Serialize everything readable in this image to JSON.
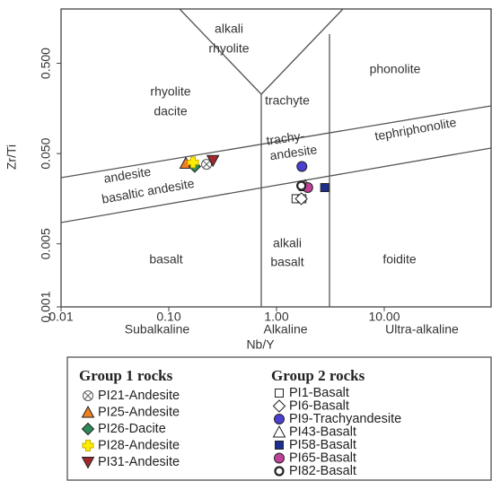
{
  "chart_data": {
    "type": "scatter",
    "x_label": "Nb/Y",
    "y_label": "Zr/Ti",
    "xlim": [
      0.01,
      100
    ],
    "ylim": [
      0.001,
      2
    ],
    "log_x": true,
    "log_y": true,
    "xticks": [
      0.01,
      {
        "value": 0.1,
        "label": "0.10"
      },
      {
        "value": 1,
        "label": "1.00"
      },
      {
        "value": 10,
        "label": "10.00"
      }
    ],
    "yticks": [
      {
        "value": 0.001,
        "label": "0.001"
      },
      {
        "value": 0.005,
        "label": "0.005"
      },
      {
        "value": 0.05,
        "label": "0.050"
      },
      {
        "value": 0.5,
        "label": "0.500"
      }
    ],
    "annotations": [
      "alkali",
      "rhyolite",
      "rhyolite",
      "dacite",
      "trachyte",
      "phonolite",
      "trachy-",
      "andesite",
      "tephriphonolite",
      "andesite",
      "basaltic andesite",
      "basalt",
      "alkali",
      "basalt",
      "foidite",
      "Subalkaline",
      "Alkaline",
      "Ultra-alkaline"
    ],
    "legend_titles": [
      "Group 1 rocks",
      "Group 2 rocks"
    ],
    "series": [
      {
        "name": "PI21-Andesite",
        "marker": "circle-x",
        "color": "#ffffff",
        "x": [
          0.224
        ],
        "values": [
          0.038
        ]
      },
      {
        "name": "PI25-Andesite",
        "marker": "triangle",
        "color": "#f07f20",
        "x": [
          0.144
        ],
        "values": [
          0.039
        ]
      },
      {
        "name": "PI26-Dacite",
        "marker": "diamond",
        "color": "#2e8b57",
        "x": [
          0.174
        ],
        "values": [
          0.036
        ]
      },
      {
        "name": "PI28-Andesite",
        "marker": "cross",
        "color": "#ffee00",
        "x": [
          0.168
        ],
        "values": [
          0.04
        ]
      },
      {
        "name": "PI31-Andesite",
        "marker": "triangle-down",
        "color": "#a0282c",
        "x": [
          0.257
        ],
        "values": [
          0.042
        ]
      },
      {
        "name": "PI1-Basalt",
        "marker": "square",
        "color": "#ffffff",
        "x": [
          1.52,
          1.72
        ],
        "values": [
          0.0158,
          0.0158
        ]
      },
      {
        "name": "PI6-Basalt",
        "marker": "diamond",
        "color": "#ffffff",
        "x": [
          1.7
        ],
        "values": [
          0.0158
        ]
      },
      {
        "name": "PI9-Trachyandesite",
        "marker": "circle",
        "color": "#4a3fd0",
        "x": [
          1.72
        ],
        "values": [
          0.036
        ]
      },
      {
        "name": "PI43-Basalt",
        "marker": "triangle",
        "color": "#ffffff",
        "x": [
          1.85
        ],
        "values": [
          0.022
        ]
      },
      {
        "name": "PI58-Basalt",
        "marker": "square",
        "color": "#1a2f8f",
        "x": [
          2.8
        ],
        "values": [
          0.021
        ]
      },
      {
        "name": "PI65-Basalt",
        "marker": "circle",
        "color": "#c0419a",
        "x": [
          1.95
        ],
        "values": [
          0.021
        ]
      },
      {
        "name": "PI82-Basalt",
        "marker": "circle-thick",
        "color": "#ffffff",
        "x": [
          1.7
        ],
        "values": [
          0.022
        ]
      }
    ]
  }
}
